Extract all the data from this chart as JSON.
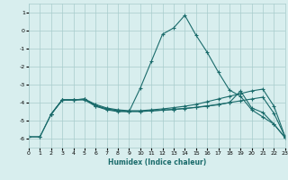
{
  "xlabel": "Humidex (Indice chaleur)",
  "xlim": [
    0,
    23
  ],
  "ylim": [
    -6.5,
    1.5
  ],
  "yticks": [
    1,
    0,
    -1,
    -2,
    -3,
    -4,
    -5,
    -6
  ],
  "xticks": [
    0,
    1,
    2,
    3,
    4,
    5,
    6,
    7,
    8,
    9,
    10,
    11,
    12,
    13,
    14,
    15,
    16,
    17,
    18,
    19,
    20,
    21,
    22,
    23
  ],
  "line_color": "#1a6b6b",
  "bg_color": "#d8eeee",
  "grid_color": "#a8cccc",
  "series": [
    {
      "x": [
        0,
        1,
        2,
        3,
        4,
        5,
        6,
        7,
        8,
        9,
        10,
        11,
        12,
        13,
        14,
        15,
        16,
        17,
        18,
        19,
        20,
        21,
        22,
        23
      ],
      "y": [
        -5.9,
        -5.9,
        -4.65,
        -3.85,
        -3.85,
        -3.85,
        -4.2,
        -4.4,
        -4.5,
        -4.5,
        -4.48,
        -4.45,
        -4.42,
        -4.38,
        -4.33,
        -4.27,
        -4.2,
        -4.12,
        -4.0,
        -3.35,
        -4.3,
        -4.55,
        -5.2,
        -5.95
      ]
    },
    {
      "x": [
        0,
        1,
        2,
        3,
        4,
        5,
        6,
        7,
        8,
        9,
        10,
        11,
        12,
        13,
        14,
        15,
        16,
        17,
        18,
        19,
        20,
        21,
        22,
        23
      ],
      "y": [
        -5.9,
        -5.9,
        -4.65,
        -3.85,
        -3.85,
        -3.8,
        -4.2,
        -4.35,
        -4.45,
        -4.5,
        -3.2,
        -1.7,
        -0.2,
        0.15,
        0.85,
        -0.25,
        -1.2,
        -2.3,
        -3.3,
        -3.65,
        -4.4,
        -4.8,
        -5.2,
        -5.95
      ]
    },
    {
      "x": [
        2,
        3,
        4,
        5,
        6,
        7,
        8,
        9,
        10,
        11,
        12,
        13,
        14,
        15,
        16,
        17,
        18,
        19,
        20,
        21,
        22,
        23
      ],
      "y": [
        -4.65,
        -3.85,
        -3.85,
        -3.8,
        -4.1,
        -4.3,
        -4.4,
        -4.45,
        -4.45,
        -4.4,
        -4.35,
        -4.28,
        -4.2,
        -4.1,
        -3.95,
        -3.8,
        -3.65,
        -3.5,
        -3.35,
        -3.25,
        -4.2,
        -5.9
      ]
    },
    {
      "x": [
        2,
        3,
        4,
        5,
        6,
        7,
        8,
        9,
        10,
        11,
        12,
        13,
        14,
        15,
        16,
        17,
        18,
        19,
        20,
        21,
        22,
        23
      ],
      "y": [
        -4.65,
        -3.85,
        -3.85,
        -3.82,
        -4.15,
        -4.35,
        -4.45,
        -4.48,
        -4.5,
        -4.46,
        -4.42,
        -4.38,
        -4.32,
        -4.26,
        -4.18,
        -4.1,
        -4.0,
        -3.9,
        -3.8,
        -3.7,
        -4.6,
        -5.9
      ]
    }
  ]
}
